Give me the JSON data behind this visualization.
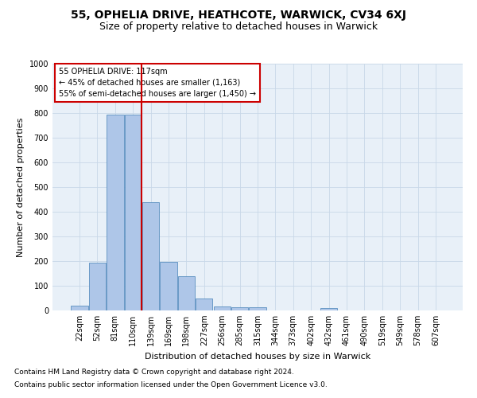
{
  "title": "55, OPHELIA DRIVE, HEATHCOTE, WARWICK, CV34 6XJ",
  "subtitle": "Size of property relative to detached houses in Warwick",
  "xlabel": "Distribution of detached houses by size in Warwick",
  "ylabel": "Number of detached properties",
  "footnote1": "Contains HM Land Registry data © Crown copyright and database right 2024.",
  "footnote2": "Contains public sector information licensed under the Open Government Licence v3.0.",
  "annotation_line1": "55 OPHELIA DRIVE: 117sqm",
  "annotation_line2": "← 45% of detached houses are smaller (1,163)",
  "annotation_line3": "55% of semi-detached houses are larger (1,450) →",
  "bar_labels": [
    "22sqm",
    "52sqm",
    "81sqm",
    "110sqm",
    "139sqm",
    "169sqm",
    "198sqm",
    "227sqm",
    "256sqm",
    "285sqm",
    "315sqm",
    "344sqm",
    "373sqm",
    "402sqm",
    "432sqm",
    "461sqm",
    "490sqm",
    "519sqm",
    "549sqm",
    "578sqm",
    "607sqm"
  ],
  "bar_values": [
    18,
    192,
    795,
    793,
    440,
    196,
    140,
    50,
    15,
    12,
    12,
    0,
    0,
    0,
    10,
    0,
    0,
    0,
    0,
    0,
    0
  ],
  "bar_color": "#aec6e8",
  "bar_edge_color": "#5a8fc0",
  "vline_color": "#cc0000",
  "vline_x": 3.5,
  "ylim": [
    0,
    1000
  ],
  "yticks": [
    0,
    100,
    200,
    300,
    400,
    500,
    600,
    700,
    800,
    900,
    1000
  ],
  "grid_color": "#c8d8e8",
  "background_color": "#e8f0f8",
  "title_fontsize": 10,
  "subtitle_fontsize": 9,
  "ylabel_fontsize": 8,
  "xlabel_fontsize": 8,
  "tick_fontsize": 7,
  "annotation_fontsize": 7,
  "footnote_fontsize": 6.5
}
